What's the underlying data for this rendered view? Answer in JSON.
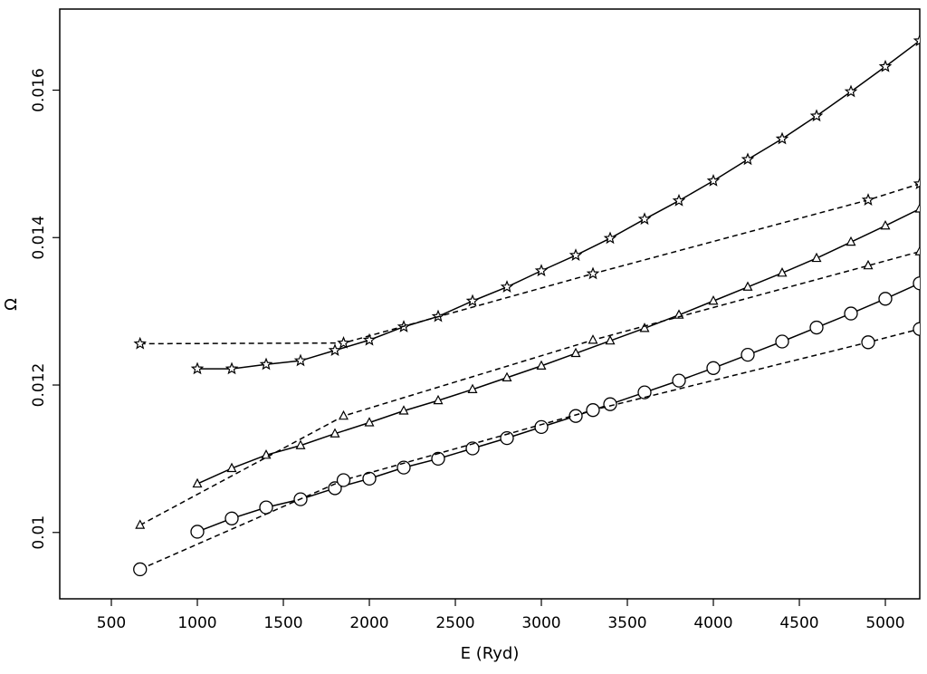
{
  "chart_data": {
    "type": "line",
    "title": "",
    "xlabel": "E (Ryd)",
    "ylabel": "Ω",
    "xlim": [
      200,
      5200
    ],
    "ylim": [
      0.0091,
      0.0171
    ],
    "xticks": [
      "500",
      "1000",
      "1500",
      "2000",
      "2500",
      "3000",
      "3500",
      "4000",
      "4500",
      "5000"
    ],
    "yticks": [
      "0.01",
      "0.012",
      "0.014",
      "0.016"
    ],
    "grid": false,
    "legend": "none",
    "series": [
      {
        "marker": "star",
        "line_style": "solid",
        "x": [
          1000,
          1200,
          1400,
          1600,
          1800,
          2000,
          2200,
          2400,
          2600,
          2800,
          3000,
          3200,
          3400,
          3600,
          3800,
          4000,
          4200,
          4400,
          4600,
          4800,
          5000,
          5200
        ],
        "y": [
          0.01222,
          0.01222,
          0.01228,
          0.01233,
          0.01247,
          0.01261,
          0.01279,
          0.01293,
          0.01314,
          0.01333,
          0.01355,
          0.01376,
          0.01399,
          0.01425,
          0.0145,
          0.01477,
          0.01506,
          0.01534,
          0.01565,
          0.01598,
          0.01632,
          0.01667
        ]
      },
      {
        "marker": "star",
        "line_style": "dashed",
        "x": [
          667,
          1850,
          3300,
          4900,
          5200
        ],
        "y": [
          0.01256,
          0.01257,
          0.01351,
          0.01451,
          0.01473
        ]
      },
      {
        "marker": "triangle",
        "line_style": "solid",
        "x": [
          1000,
          1200,
          1400,
          1600,
          1800,
          2000,
          2200,
          2400,
          2600,
          2800,
          3000,
          3200,
          3400,
          3600,
          3800,
          4000,
          4200,
          4400,
          4600,
          4800,
          5000,
          5200
        ],
        "y": [
          0.01066,
          0.01087,
          0.01105,
          0.01118,
          0.01134,
          0.01149,
          0.01165,
          0.01179,
          0.01194,
          0.0121,
          0.01226,
          0.01243,
          0.0126,
          0.01277,
          0.01295,
          0.01314,
          0.01333,
          0.01352,
          0.01372,
          0.01394,
          0.01416,
          0.01439
        ]
      },
      {
        "marker": "triangle",
        "line_style": "dashed",
        "x": [
          667,
          1850,
          3300,
          4900,
          5200
        ],
        "y": [
          0.0101,
          0.01158,
          0.01261,
          0.01362,
          0.01381
        ]
      },
      {
        "marker": "circle",
        "line_style": "solid",
        "x": [
          1000,
          1200,
          1400,
          1600,
          1800,
          2000,
          2200,
          2400,
          2600,
          2800,
          3000,
          3200,
          3400,
          3600,
          3800,
          4000,
          4200,
          4400,
          4600,
          4800,
          5000,
          5200
        ],
        "y": [
          0.01001,
          0.01019,
          0.01034,
          0.01045,
          0.0106,
          0.01073,
          0.01088,
          0.011,
          0.01114,
          0.01128,
          0.01143,
          0.01158,
          0.01174,
          0.0119,
          0.01206,
          0.01223,
          0.01241,
          0.01259,
          0.01278,
          0.01297,
          0.01317,
          0.01338
        ]
      },
      {
        "marker": "circle",
        "line_style": "dashed",
        "x": [
          667,
          1850,
          3300,
          4900,
          5200
        ],
        "y": [
          0.0095,
          0.01071,
          0.01166,
          0.01258,
          0.01276
        ]
      }
    ]
  }
}
